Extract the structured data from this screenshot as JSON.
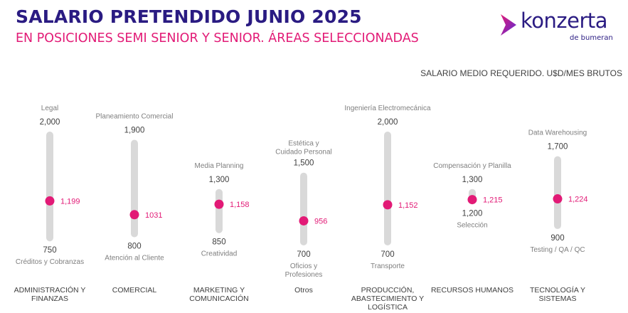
{
  "header": {
    "title": "SALARIO PRETENDIDO JUNIO 2025",
    "subtitle": "EN POSICIONES SEMI SENIOR Y SENIOR. ÁREAS SELECCIONADAS"
  },
  "logo": {
    "name": "konzerta",
    "tagline": "de bumeran"
  },
  "unit_label": "SALARIO MEDIO REQUERIDO. U$D/MES BRUTOS",
  "colors": {
    "title": "#2a1b82",
    "accent": "#e21a76",
    "bar": "#d9d9d9",
    "label": "#404040",
    "muted": "#7f7f7f"
  },
  "chart_data": {
    "type": "range",
    "categories": [
      "ADMINISTRACIÓN Y FINANZAS",
      "COMERCIAL",
      "MARKETING Y COMUNICACIÓN",
      "Otros",
      "PRODUCCIÓN, ABASTECIMIENTO Y LOGÍSTICA",
      "RECURSOS HUMANOS",
      "TECNOLOGÍA Y SISTEMAS"
    ],
    "series": [
      {
        "name": "max",
        "values": [
          2000,
          1900,
          1300,
          1500,
          2000,
          1300,
          1700
        ]
      },
      {
        "name": "min",
        "values": [
          750,
          800,
          850,
          700,
          700,
          1200,
          900
        ]
      },
      {
        "name": "mean",
        "values": [
          1199,
          1031,
          1158,
          956,
          1152,
          1215,
          1224
        ]
      }
    ],
    "max_labels": [
      "2,000",
      "1,900",
      "1,300",
      "1,500",
      "2,000",
      "1,300",
      "1,700"
    ],
    "min_labels": [
      "750",
      "800",
      "850",
      "700",
      "700",
      "1,200",
      "900"
    ],
    "mean_labels": [
      "1,199",
      "1031",
      "1,158",
      "956",
      "1,152",
      "1,215",
      "1,224"
    ],
    "top_roles": [
      "Legal",
      "Planeamiento Comercial",
      "Media Planning",
      "Estética y Cuidado Personal",
      "Ingeniería Electromecánica",
      "Compensación y Planilla",
      "Data Warehousing"
    ],
    "bottom_roles": [
      "Créditos y Cobranzas",
      "Atención al Cliente",
      "Creatividad",
      "Oficios y Profesiones",
      "Transporte",
      "Selección",
      "Testing / QA / QC"
    ]
  }
}
